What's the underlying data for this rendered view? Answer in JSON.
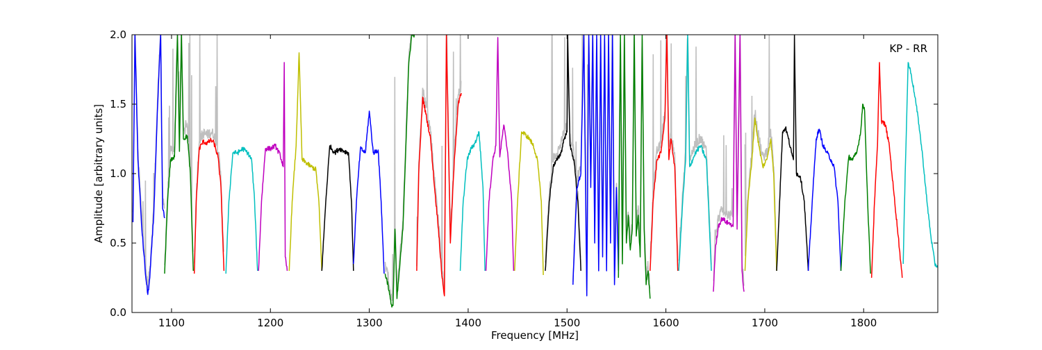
{
  "chart_data": {
    "type": "line",
    "title": "",
    "xlabel": "Frequency [MHz]",
    "ylabel": "Amplitude [arbitrary units]",
    "xlim": [
      1060,
      1875
    ],
    "ylim": [
      0.0,
      2.0
    ],
    "xticks": [
      1100,
      1200,
      1300,
      1400,
      1500,
      1600,
      1700,
      1800
    ],
    "yticks": [
      0.0,
      0.5,
      1.0,
      1.5,
      2.0
    ],
    "ytick_labels": [
      "0.0",
      "0.5",
      "1.0",
      "1.5",
      "2.0"
    ],
    "annotation": "KP - RR",
    "grid": false,
    "raw_color": "#bfbfbf",
    "raw_ranges": [
      [
        1060,
        1095
      ],
      [
        1095,
        1160
      ],
      [
        1315,
        1395
      ],
      [
        1495,
        1700
      ]
    ],
    "series": [
      {
        "color": "#0000ff",
        "x": [
          1061,
          1063,
          1066,
          1070,
          1074,
          1076,
          1078,
          1082,
          1086,
          1089,
          1090,
          1091,
          1093
        ],
        "y": [
          0.65,
          2.0,
          1.1,
          0.6,
          0.25,
          0.13,
          0.25,
          0.7,
          1.5,
          2.0,
          1.3,
          0.75,
          0.68
        ]
      },
      {
        "color": "#008000",
        "x": [
          1093,
          1096,
          1099,
          1103,
          1106,
          1108,
          1110,
          1112,
          1116,
          1119,
          1122
        ],
        "y": [
          0.28,
          0.8,
          1.1,
          1.12,
          2.0,
          1.16,
          2.0,
          1.25,
          1.27,
          1.0,
          0.3
        ]
      },
      {
        "color": "#ff0000",
        "x": [
          1123,
          1125,
          1128,
          1132,
          1136,
          1140,
          1143,
          1147,
          1150,
          1153
        ],
        "y": [
          0.28,
          0.8,
          1.18,
          1.23,
          1.22,
          1.24,
          1.22,
          1.12,
          0.9,
          0.3
        ]
      },
      {
        "color": "#00bfbf",
        "x": [
          1155,
          1158,
          1162,
          1167,
          1172,
          1177,
          1181,
          1184,
          1187
        ],
        "y": [
          0.28,
          0.8,
          1.15,
          1.15,
          1.18,
          1.15,
          1.1,
          0.8,
          0.3
        ]
      },
      {
        "color": "#bf00bf",
        "x": [
          1188,
          1191,
          1195,
          1200,
          1205,
          1210,
          1213,
          1214,
          1215,
          1217
        ],
        "y": [
          0.3,
          0.8,
          1.18,
          1.18,
          1.2,
          1.13,
          1.05,
          1.8,
          0.4,
          0.3
        ]
      },
      {
        "color": "#bfbf00",
        "x": [
          1219,
          1222,
          1226,
          1229,
          1232,
          1236,
          1241,
          1246,
          1249,
          1252
        ],
        "y": [
          0.3,
          0.8,
          1.2,
          1.87,
          1.1,
          1.08,
          1.05,
          1.03,
          0.8,
          0.3
        ]
      },
      {
        "color": "#000000",
        "x": [
          1252,
          1256,
          1260,
          1265,
          1270,
          1275,
          1279,
          1282,
          1284
        ],
        "y": [
          0.3,
          0.8,
          1.2,
          1.15,
          1.18,
          1.16,
          1.15,
          0.8,
          0.3
        ]
      },
      {
        "color": "#0000ff",
        "x": [
          1284,
          1287,
          1291,
          1296,
          1300,
          1304,
          1309,
          1312,
          1315
        ],
        "y": [
          0.35,
          0.8,
          1.18,
          1.15,
          1.45,
          1.15,
          1.17,
          0.8,
          0.28
        ]
      },
      {
        "color": "#008000",
        "x": [
          1316,
          1319,
          1322,
          1324,
          1326,
          1328,
          1331,
          1334,
          1337,
          1340,
          1343,
          1346
        ],
        "y": [
          0.28,
          0.2,
          0.06,
          0.05,
          0.6,
          0.1,
          0.35,
          0.6,
          1.2,
          1.8,
          2.0,
          2.0
        ]
      },
      {
        "color": "#ff0000",
        "x": [
          1348,
          1350,
          1354,
          1358,
          1362,
          1366,
          1370,
          1373,
          1376,
          1378,
          1382,
          1386,
          1390,
          1393
        ],
        "y": [
          0.3,
          1.0,
          1.55,
          1.4,
          1.25,
          0.9,
          0.6,
          0.3,
          0.12,
          2.0,
          0.5,
          1.1,
          1.5,
          1.58
        ]
      },
      {
        "color": "#00bfbf",
        "x": [
          1392,
          1395,
          1399,
          1403,
          1407,
          1411,
          1415,
          1417
        ],
        "y": [
          0.3,
          0.8,
          1.1,
          1.18,
          1.22,
          1.3,
          0.9,
          0.3
        ]
      },
      {
        "color": "#bf00bf",
        "x": [
          1418,
          1421,
          1425,
          1428,
          1430,
          1432,
          1436,
          1440,
          1444,
          1446
        ],
        "y": [
          0.3,
          0.8,
          1.1,
          1.2,
          1.98,
          1.12,
          1.35,
          1.15,
          0.8,
          0.3
        ]
      },
      {
        "color": "#bfbf00",
        "x": [
          1447,
          1450,
          1454,
          1458,
          1462,
          1466,
          1470,
          1474,
          1476
        ],
        "y": [
          0.3,
          0.8,
          1.3,
          1.28,
          1.25,
          1.2,
          1.1,
          0.8,
          0.27
        ]
      },
      {
        "color": "#000000",
        "x": [
          1478,
          1482,
          1486,
          1490,
          1494,
          1497,
          1500,
          1500.6,
          1503,
          1507,
          1511,
          1514
        ],
        "y": [
          0.3,
          0.8,
          1.05,
          1.1,
          1.15,
          1.25,
          1.3,
          2.0,
          1.2,
          1.1,
          0.8,
          0.3
        ]
      },
      {
        "color": "#0000ff",
        "x": [
          1506,
          1510,
          1514,
          1517,
          1520,
          1522,
          1524,
          1526,
          1528,
          1530,
          1532,
          1534,
          1536,
          1538,
          1540,
          1542,
          1544,
          1546,
          1548,
          1550,
          1552
        ],
        "y": [
          0.2,
          0.9,
          1.0,
          2.0,
          0.12,
          2.0,
          0.9,
          2.0,
          0.5,
          2.0,
          0.3,
          2.0,
          0.4,
          2.0,
          0.3,
          2.0,
          0.5,
          2.0,
          0.2,
          0.9,
          0.3
        ]
      },
      {
        "color": "#008000",
        "x": [
          1552,
          1554,
          1556,
          1558,
          1560,
          1562,
          1564,
          1566,
          1568,
          1570,
          1572,
          1574,
          1576,
          1578,
          1580,
          1582,
          1584
        ],
        "y": [
          0.25,
          2.0,
          0.35,
          2.0,
          0.5,
          0.7,
          0.45,
          0.6,
          2.0,
          0.55,
          0.7,
          0.4,
          2.0,
          0.6,
          0.2,
          0.3,
          0.1
        ]
      },
      {
        "color": "#ff0000",
        "x": [
          1584,
          1587,
          1591,
          1595,
          1599,
          1601,
          1603,
          1605,
          1609,
          1612
        ],
        "y": [
          0.3,
          0.8,
          1.1,
          1.15,
          1.4,
          2.0,
          1.1,
          1.25,
          1.05,
          0.3
        ]
      },
      {
        "color": "#00bfbf",
        "x": [
          1613,
          1617,
          1620,
          1622,
          1624,
          1627,
          1630,
          1635,
          1641,
          1646
        ],
        "y": [
          0.3,
          0.8,
          1.1,
          2.0,
          1.05,
          1.1,
          1.15,
          1.2,
          1.1,
          0.3
        ]
      },
      {
        "color": "#bf00bf",
        "x": [
          1648,
          1650,
          1653,
          1657,
          1661,
          1665,
          1668,
          1670,
          1672,
          1675,
          1677,
          1679
        ],
        "y": [
          0.15,
          0.45,
          0.62,
          0.68,
          0.65,
          0.64,
          0.62,
          2.0,
          0.6,
          2.0,
          0.3,
          0.15
        ]
      },
      {
        "color": "#bfbf00",
        "x": [
          1680,
          1683,
          1687,
          1690,
          1694,
          1698,
          1702,
          1706,
          1709,
          1712
        ],
        "y": [
          0.3,
          0.8,
          1.1,
          1.4,
          1.2,
          1.05,
          1.1,
          1.25,
          1.0,
          0.3
        ]
      },
      {
        "color": "#000000",
        "x": [
          1712,
          1715,
          1718,
          1721,
          1724,
          1727,
          1729,
          1730,
          1732,
          1736,
          1740,
          1744
        ],
        "y": [
          0.3,
          0.8,
          1.3,
          1.33,
          1.25,
          1.15,
          1.1,
          2.0,
          1.0,
          0.98,
          0.8,
          0.3
        ]
      },
      {
        "color": "#0000ff",
        "x": [
          1744,
          1748,
          1752,
          1755,
          1759,
          1763,
          1767,
          1770,
          1774,
          1777
        ],
        "y": [
          0.3,
          0.8,
          1.25,
          1.32,
          1.2,
          1.15,
          1.1,
          1.05,
          0.8,
          0.3
        ]
      },
      {
        "color": "#008000",
        "x": [
          1777,
          1781,
          1785,
          1789,
          1793,
          1797,
          1799,
          1801,
          1804,
          1807
        ],
        "y": [
          0.3,
          0.8,
          1.12,
          1.1,
          1.15,
          1.3,
          1.5,
          1.45,
          0.8,
          0.28
        ]
      },
      {
        "color": "#ff0000",
        "x": [
          1808,
          1811,
          1814,
          1816,
          1818,
          1822,
          1826,
          1830,
          1835,
          1839
        ],
        "y": [
          0.25,
          0.8,
          1.2,
          1.8,
          1.38,
          1.35,
          1.2,
          0.9,
          0.55,
          0.25
        ]
      },
      {
        "color": "#00bfbf",
        "x": [
          1840,
          1842,
          1845,
          1848,
          1852,
          1856,
          1860,
          1864,
          1868,
          1872,
          1875
        ],
        "y": [
          0.35,
          1.0,
          1.8,
          1.72,
          1.55,
          1.35,
          1.1,
          0.8,
          0.55,
          0.35,
          0.33
        ]
      }
    ]
  }
}
